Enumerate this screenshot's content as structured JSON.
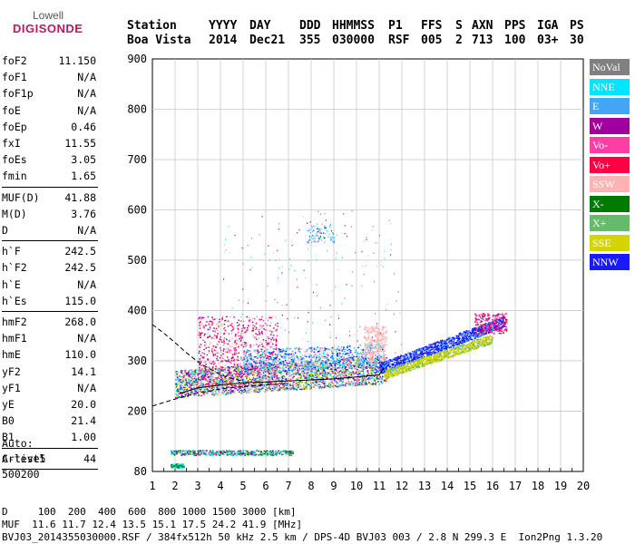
{
  "logo": {
    "line1": "Lowell",
    "line2": "DIGISONDE"
  },
  "header": {
    "labels": [
      "Station",
      "YYYY",
      "DAY",
      "DDD",
      "HHMMSS",
      "P1",
      "FFS",
      "S",
      "AXN",
      "PPS",
      "IGA",
      "PS"
    ],
    "values": [
      "Boa Vista",
      "2014",
      "Dec21",
      "355",
      "030000",
      "RSF",
      "005",
      "2",
      "713",
      "100",
      "03+",
      "30"
    ]
  },
  "params": [
    [
      {
        "k": "foF2",
        "v": "11.150"
      },
      {
        "k": "foF1",
        "v": "N/A"
      },
      {
        "k": "foF1p",
        "v": "N/A"
      },
      {
        "k": "foE",
        "v": "N/A"
      },
      {
        "k": "foEp",
        "v": "0.46"
      },
      {
        "k": "fxI",
        "v": "11.55"
      },
      {
        "k": "foEs",
        "v": "3.05"
      },
      {
        "k": "fmin",
        "v": "1.65"
      }
    ],
    [
      {
        "k": "MUF(D)",
        "v": "41.88"
      },
      {
        "k": "M(D)",
        "v": "3.76"
      },
      {
        "k": "D",
        "v": "N/A"
      }
    ],
    [
      {
        "k": "h`F",
        "v": "242.5"
      },
      {
        "k": "h`F2",
        "v": "242.5"
      },
      {
        "k": "h`E",
        "v": "N/A"
      },
      {
        "k": "h`Es",
        "v": "115.0"
      }
    ],
    [
      {
        "k": "hmF2",
        "v": "268.0"
      },
      {
        "k": "hmF1",
        "v": "N/A"
      },
      {
        "k": "hmE",
        "v": "110.0"
      },
      {
        "k": "yF2",
        "v": "14.1"
      },
      {
        "k": "yF1",
        "v": "N/A"
      },
      {
        "k": "yE",
        "v": "20.0"
      },
      {
        "k": "B0",
        "v": "21.4"
      },
      {
        "k": "B1",
        "v": "1.00"
      }
    ],
    [
      {
        "k": "C-level",
        "v": "44"
      }
    ]
  ],
  "auto": [
    "Auto:",
    "Artist5",
    "500200"
  ],
  "legend": [
    {
      "label": "NoVal",
      "color": "#808080"
    },
    {
      "label": "NNE",
      "color": "#00e5ff"
    },
    {
      "label": "E",
      "color": "#42a5f5"
    },
    {
      "label": "W",
      "color": "#a0009e"
    },
    {
      "label": "Vo-",
      "color": "#ff3ea5"
    },
    {
      "label": "Vo+",
      "color": "#ff0044"
    },
    {
      "label": "SSW",
      "color": "#ffb3b3"
    },
    {
      "label": "X-",
      "color": "#007a00"
    },
    {
      "label": "X+",
      "color": "#66bb6a"
    },
    {
      "label": "SSE",
      "color": "#d4d400"
    },
    {
      "label": "NNW",
      "color": "#1a1aff"
    }
  ],
  "chart_data": {
    "type": "scatter",
    "xlim": [
      1,
      20
    ],
    "ylim": [
      80,
      900
    ],
    "xticks": [
      1,
      2,
      3,
      4,
      5,
      6,
      7,
      8,
      9,
      10,
      11,
      12,
      13,
      14,
      15,
      16,
      17,
      18,
      19,
      20
    ],
    "yticks": [
      80,
      200,
      300,
      400,
      500,
      600,
      700,
      800,
      900
    ],
    "grid": true,
    "profile_dashed": [
      [
        1,
        372
      ],
      [
        1.5,
        355
      ],
      [
        2,
        336
      ],
      [
        2.5,
        316
      ],
      [
        3,
        298
      ],
      [
        3.5,
        285
      ],
      [
        4,
        272
      ],
      [
        4.5,
        265
      ],
      [
        5,
        260
      ]
    ],
    "profile_dashed_low": [
      [
        1,
        210
      ],
      [
        2,
        224
      ],
      [
        3,
        236
      ],
      [
        4,
        244
      ],
      [
        5,
        249
      ],
      [
        6,
        252
      ],
      [
        7,
        255
      ]
    ],
    "trace_black": [
      [
        2.2,
        235
      ],
      [
        3,
        246
      ],
      [
        4,
        252
      ],
      [
        5,
        256
      ],
      [
        6,
        258
      ],
      [
        7,
        260
      ],
      [
        8,
        262
      ],
      [
        9,
        264
      ],
      [
        10,
        268
      ],
      [
        11,
        272
      ],
      [
        11.2,
        285
      ]
    ]
  },
  "bottom": {
    "d_line": "D     100  200  400  600  800 1000 1500 3000 [km]",
    "muf_line": "MUF  11.6 11.7 12.4 13.5 15.1 17.5 24.2 41.9 [MHz]",
    "file_line": "BVJ03_2014355030000.RSF / 384fx512h 50 kHz 2.5 km / DPS-4D BVJ03 003 / 2.8 N 299.3 E  Ion2Png 1.3.20"
  }
}
